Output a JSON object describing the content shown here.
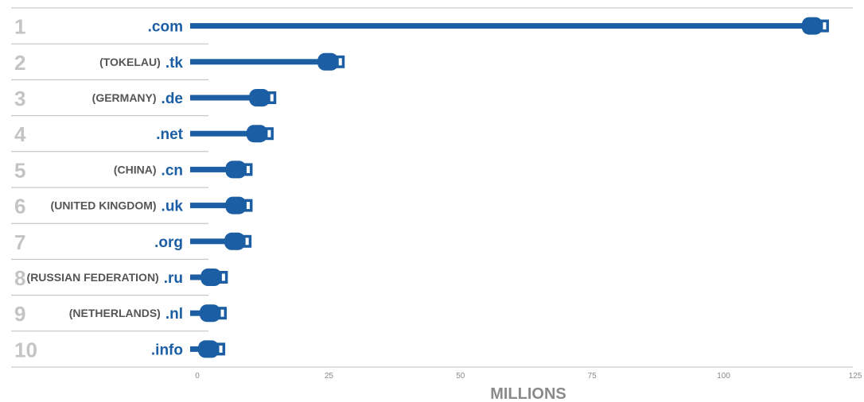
{
  "chart_data": {
    "type": "bar",
    "xlabel": "MILLIONS",
    "xlim": [
      0,
      125
    ],
    "xticks": [
      0,
      25,
      50,
      75,
      100,
      125
    ],
    "bar_color": "#1b5ea3",
    "rank_color": "#c4c4c4",
    "country_color": "#555555",
    "grid": false,
    "bar_style": "plug-shaped bar ends",
    "rows": [
      {
        "rank": "1",
        "country": "",
        "tld": ".com",
        "value": 120
      },
      {
        "rank": "2",
        "country": "(TOKELAU)",
        "tld": ".tk",
        "value": 28
      },
      {
        "rank": "3",
        "country": "(GERMANY)",
        "tld": ".de",
        "value": 15
      },
      {
        "rank": "4",
        "country": "",
        "tld": ".net",
        "value": 14.5
      },
      {
        "rank": "5",
        "country": "(CHINA)",
        "tld": ".cn",
        "value": 10.5
      },
      {
        "rank": "6",
        "country": "(UNITED KINGDOM)",
        "tld": ".uk",
        "value": 10.5
      },
      {
        "rank": "7",
        "country": "",
        "tld": ".org",
        "value": 10.3
      },
      {
        "rank": "8",
        "country": "(RUSSIAN FEDERATION)",
        "tld": ".ru",
        "value": 5.8
      },
      {
        "rank": "9",
        "country": "(NETHERLANDS)",
        "tld": ".nl",
        "value": 5.6
      },
      {
        "rank": "10",
        "country": "",
        "tld": ".info",
        "value": 5.3
      }
    ]
  }
}
